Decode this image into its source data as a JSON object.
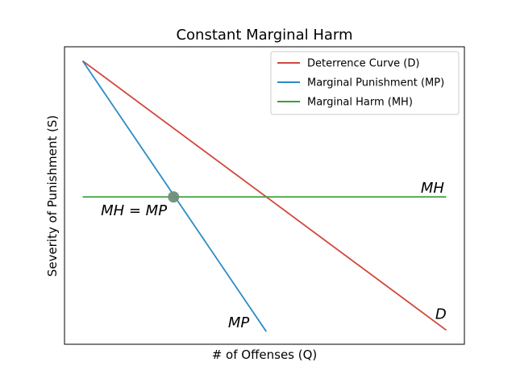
{
  "chart_data": {
    "type": "line",
    "title": "Constant Marginal Harm",
    "xlabel": "# of Offenses (Q)",
    "ylabel": "Severity of Punishment (S)",
    "xlim": [
      0,
      11
    ],
    "ylim": [
      0,
      10.5
    ],
    "grid": false,
    "legend_position": "top-right",
    "x_ticks_shown": false,
    "y_ticks_shown": false,
    "series": [
      {
        "name": "Deterrence Curve (D)",
        "color": "#d0483c",
        "x": [
          0.5,
          10.5
        ],
        "y": [
          10,
          0.5
        ]
      },
      {
        "name": "Marginal Punishment (MP)",
        "color": "#2b8cc4",
        "x": [
          0.5,
          5.55
        ],
        "y": [
          10,
          0.45
        ]
      },
      {
        "name": "Marginal Harm (MH)",
        "color": "#3a9e3a",
        "x": [
          0.5,
          10.5
        ],
        "y": [
          5.2,
          5.2
        ]
      }
    ],
    "points": [
      {
        "x": 3.0,
        "y": 5.2,
        "color": "#6f8f7a"
      }
    ],
    "annotations": [
      {
        "text": "MH = MP",
        "x": 1.0,
        "y": 4.55
      },
      {
        "text": "MH",
        "x": 9.8,
        "y": 5.35
      },
      {
        "text": "MP",
        "x": 4.5,
        "y": 0.6
      },
      {
        "text": "D",
        "x": 10.2,
        "y": 0.9
      }
    ]
  }
}
